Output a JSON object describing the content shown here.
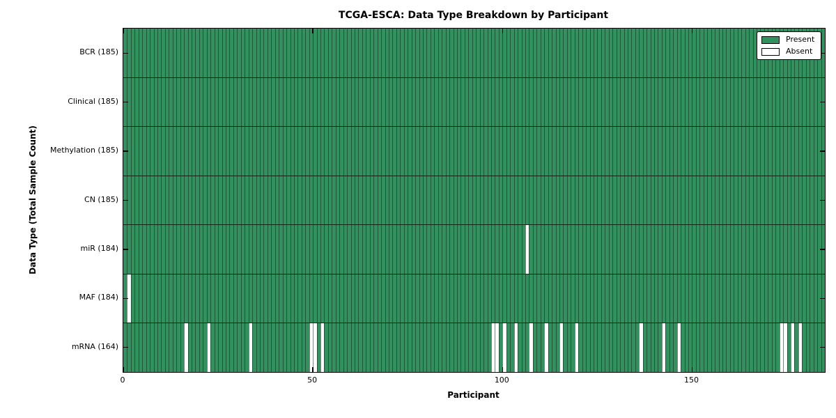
{
  "title": "TCGA-ESCA: Data Type Breakdown by Participant",
  "chart_data": {
    "type": "heatmap",
    "title": "TCGA-ESCA: Data Type Breakdown by Participant",
    "xlabel": "Participant",
    "ylabel": "Data Type (Total Sample Count)",
    "x_ticks": [
      0,
      50,
      100,
      150
    ],
    "x_range": [
      0,
      185
    ],
    "n_participants": 185,
    "grid": "cell-edges",
    "legend_position": "upper right",
    "legend": [
      {
        "label": "Present",
        "color": "#35905f"
      },
      {
        "label": "Absent",
        "color": "#ffffff"
      }
    ],
    "colors": {
      "present": "#35905f",
      "absent": "#ffffff",
      "cell_edge": "rgba(8,42,24,0.55)",
      "row_separator": "#0d2417",
      "axis": "#000000"
    },
    "rows": [
      {
        "label": "BCR (185)",
        "data_type": "BCR",
        "present_count": 185,
        "absent_participants": []
      },
      {
        "label": "Clinical (185)",
        "data_type": "Clinical",
        "present_count": 185,
        "absent_participants": []
      },
      {
        "label": "Methylation (185)",
        "data_type": "Methylation",
        "present_count": 185,
        "absent_participants": []
      },
      {
        "label": "CN (185)",
        "data_type": "CN",
        "present_count": 185,
        "absent_participants": []
      },
      {
        "label": "miR (184)",
        "data_type": "miR",
        "present_count": 184,
        "absent_participants": [
          106
        ]
      },
      {
        "label": "MAF (184)",
        "data_type": "MAF",
        "present_count": 184,
        "absent_participants": [
          1
        ]
      },
      {
        "label": "mRNA (164)",
        "data_type": "mRNA",
        "present_count": 164,
        "absent_participants": [
          16,
          22,
          33,
          49,
          50,
          52,
          97,
          98,
          100,
          103,
          107,
          111,
          115,
          119,
          136,
          142,
          146,
          173,
          174,
          176,
          178
        ]
      }
    ]
  }
}
